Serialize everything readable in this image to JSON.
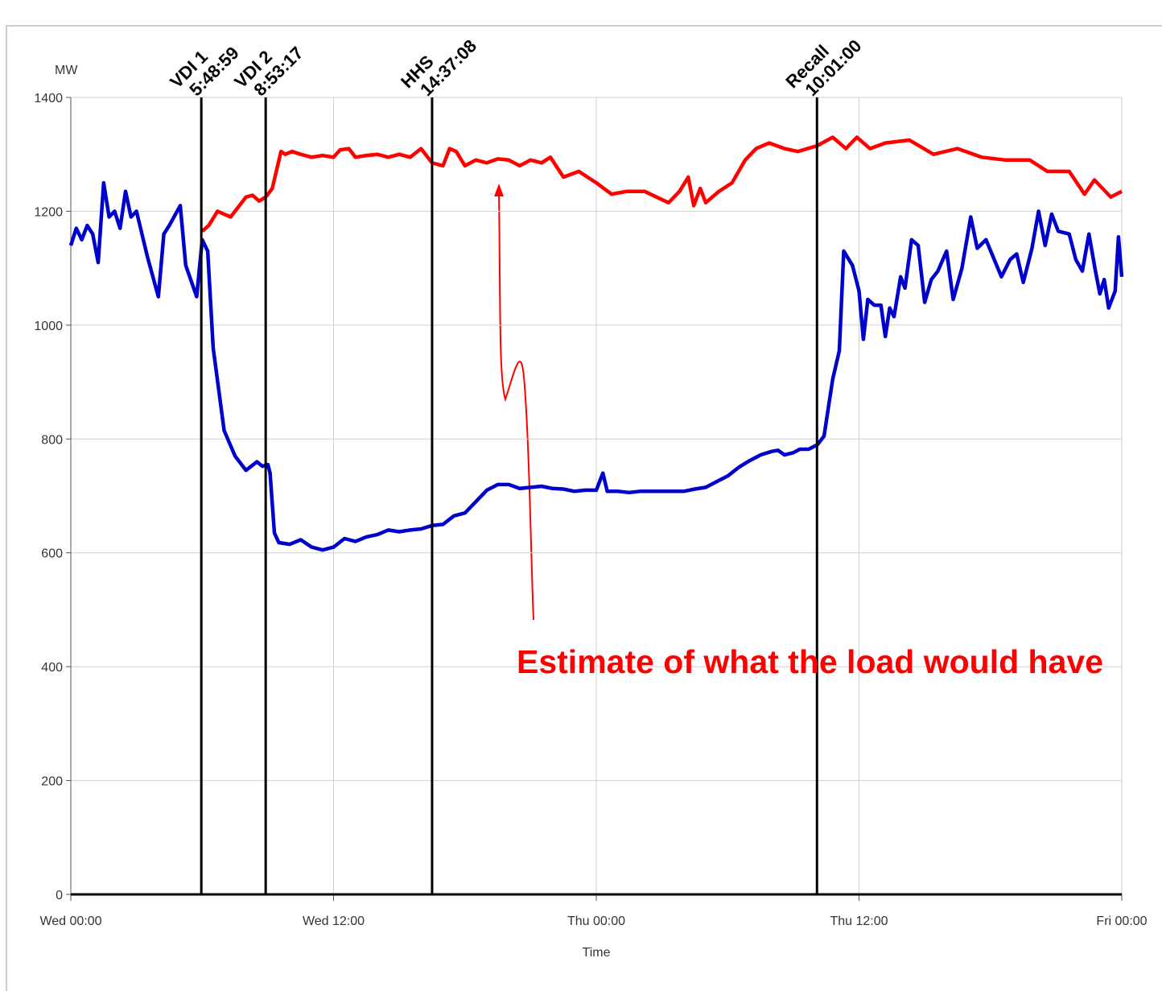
{
  "chart_data": {
    "type": "line",
    "y_label": "MW",
    "x_label": "Time",
    "xlim": [
      0,
      48
    ],
    "ylim": [
      0,
      1400
    ],
    "xticks": [
      {
        "value": 0,
        "label": "Wed 00:00"
      },
      {
        "value": 12,
        "label": "Wed 12:00"
      },
      {
        "value": 24,
        "label": "Thu 00:00"
      },
      {
        "value": 36,
        "label": "Thu 12:00"
      },
      {
        "value": 48,
        "label": "Fri 00:00"
      }
    ],
    "yticks": [
      0,
      200,
      400,
      600,
      800,
      1000,
      1200,
      1400
    ],
    "grid": true,
    "events": [
      {
        "x": 5.96,
        "name": "VDI 1",
        "time": "5:48:59"
      },
      {
        "x": 8.9,
        "name": "VDI 2",
        "time": "8:53:17"
      },
      {
        "x": 16.5,
        "name": "HHS",
        "time": "14:37:08"
      },
      {
        "x": 34.08,
        "name": "Recall",
        "time": "10:01:00"
      }
    ],
    "annotation": "Estimate of what the load would have",
    "series": [
      {
        "color": "#0000cc",
        "x": [
          0,
          0.25,
          0.5,
          0.75,
          1.0,
          1.25,
          1.5,
          1.75,
          2.0,
          2.25,
          2.5,
          2.75,
          3.0,
          3.5,
          4.0,
          4.25,
          4.5,
          5.0,
          5.25,
          5.75,
          6.0,
          6.25,
          6.5,
          7.0,
          7.5,
          8.0,
          8.5,
          8.75,
          9.0,
          9.1,
          9.3,
          9.5,
          10,
          10.5,
          11,
          11.5,
          12,
          12.5,
          13,
          13.5,
          14,
          14.5,
          15,
          15.5,
          16,
          16.5,
          17,
          17.5,
          18,
          18.5,
          19,
          19.5,
          20,
          20.5,
          21,
          21.5,
          22,
          22.5,
          23,
          23.5,
          24,
          24.3,
          24.5,
          25,
          25.5,
          26,
          27,
          28,
          28.5,
          29,
          29.5,
          30,
          30.5,
          31,
          31.5,
          32,
          32.3,
          32.6,
          33,
          33.3,
          33.7,
          34.1,
          34.4,
          34.8,
          35.1,
          35.3,
          35.7,
          36.0,
          36.2,
          36.4,
          36.7,
          37.0,
          37.2,
          37.4,
          37.6,
          37.9,
          38.1,
          38.4,
          38.7,
          39.0,
          39.3,
          39.6,
          40.0,
          40.3,
          40.7,
          41.1,
          41.4,
          41.8,
          42.5,
          42.9,
          43.2,
          43.5,
          43.9,
          44.2,
          44.5,
          44.8,
          45.1,
          45.6,
          45.9,
          46.2,
          46.5,
          46.8,
          47.0,
          47.2,
          47.4,
          47.7,
          47.85,
          48
        ],
        "values": [
          1140,
          1170,
          1150,
          1175,
          1160,
          1110,
          1250,
          1190,
          1200,
          1170,
          1235,
          1190,
          1200,
          1120,
          1050,
          1160,
          1175,
          1210,
          1105,
          1050,
          1150,
          1130,
          960,
          815,
          770,
          745,
          760,
          752,
          755,
          740,
          635,
          618,
          615,
          623,
          610,
          605,
          610,
          625,
          620,
          628,
          632,
          640,
          637,
          640,
          642,
          648,
          650,
          665,
          670,
          690,
          710,
          720,
          720,
          713,
          715,
          717,
          713,
          712,
          708,
          710,
          710,
          740,
          708,
          708,
          706,
          708,
          708,
          708,
          712,
          715,
          725,
          735,
          750,
          762,
          772,
          778,
          780,
          772,
          776,
          782,
          782,
          790,
          805,
          905,
          955,
          1130,
          1105,
          1060,
          975,
          1045,
          1035,
          1035,
          980,
          1030,
          1015,
          1085,
          1065,
          1150,
          1140,
          1040,
          1080,
          1095,
          1130,
          1045,
          1100,
          1190,
          1135,
          1150,
          1085,
          1115,
          1125,
          1075,
          1135,
          1200,
          1140,
          1195,
          1165,
          1160,
          1115,
          1095,
          1160,
          1095,
          1055,
          1080,
          1030,
          1060,
          1155,
          1085
        ]
      },
      {
        "color": "#ff0000",
        "x": [
          6.0,
          6.3,
          6.7,
          7.0,
          7.3,
          7.7,
          8.0,
          8.3,
          8.6,
          8.9,
          9.2,
          9.6,
          9.8,
          10.1,
          10.5,
          11,
          11.5,
          12,
          12.3,
          12.7,
          13,
          13.5,
          14,
          14.5,
          15,
          15.5,
          16,
          16.5,
          17,
          17.3,
          17.6,
          18,
          18.5,
          19,
          19.5,
          20,
          20.5,
          21,
          21.5,
          21.9,
          22.5,
          23.2,
          24,
          24.7,
          25.4,
          26.2,
          27.3,
          27.8,
          28.2,
          28.45,
          28.75,
          29.0,
          29.6,
          30.2,
          30.8,
          31.3,
          31.9,
          32.6,
          33.2,
          34.08,
          34.8,
          35.4,
          35.9,
          36.5,
          37.2,
          38.3,
          39.4,
          40.5,
          41.6,
          42.7,
          43.8,
          44.6,
          45.6,
          46.3,
          46.75,
          47.5,
          48
        ],
        "values": [
          1165,
          1175,
          1200,
          1195,
          1190,
          1210,
          1225,
          1228,
          1218,
          1225,
          1240,
          1305,
          1300,
          1305,
          1300,
          1295,
          1298,
          1295,
          1308,
          1310,
          1295,
          1298,
          1300,
          1295,
          1300,
          1295,
          1310,
          1285,
          1280,
          1310,
          1305,
          1280,
          1290,
          1285,
          1292,
          1290,
          1280,
          1290,
          1285,
          1295,
          1260,
          1270,
          1250,
          1230,
          1235,
          1235,
          1215,
          1235,
          1260,
          1210,
          1240,
          1215,
          1235,
          1250,
          1290,
          1310,
          1320,
          1310,
          1305,
          1315,
          1330,
          1310,
          1330,
          1310,
          1320,
          1325,
          1300,
          1310,
          1295,
          1290,
          1290,
          1270,
          1270,
          1230,
          1255,
          1225,
          1235
        ]
      }
    ]
  }
}
